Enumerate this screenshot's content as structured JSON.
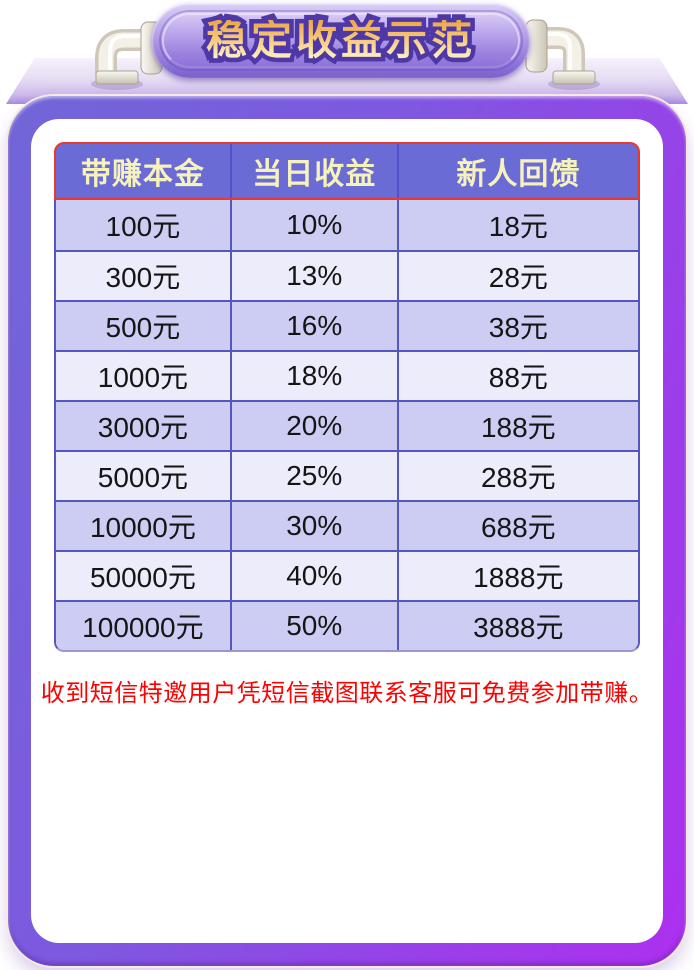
{
  "banner": {
    "title": "稳定收益示范"
  },
  "table": {
    "headers": [
      "带赚本金",
      "当日收益",
      "新人回馈"
    ],
    "rows": [
      [
        "100元",
        "10%",
        "18元"
      ],
      [
        "300元",
        "13%",
        "28元"
      ],
      [
        "500元",
        "16%",
        "38元"
      ],
      [
        "1000元",
        "18%",
        "88元"
      ],
      [
        "3000元",
        "20%",
        "188元"
      ],
      [
        "5000元",
        "25%",
        "288元"
      ],
      [
        "10000元",
        "30%",
        "688元"
      ],
      [
        "50000元",
        "40%",
        "1888元"
      ],
      [
        "100000元",
        "50%",
        "3888元"
      ]
    ]
  },
  "notice": {
    "text": "收到短信特邀用户凭短信截图联系客服可免费参加带赚。"
  },
  "colors": {
    "header_bg": "#6b6bd6",
    "header_text": "#f6f2bb",
    "row_dark": "#cdcdf4",
    "row_light": "#edecfb",
    "grid_line": "#5457be",
    "header_border_red": "#e8392f",
    "frame_gradient_left": "#7166d8",
    "frame_gradient_right": "#ad30f0",
    "banner_gold": "#f3bb62",
    "notice_red": "#fe0000"
  }
}
